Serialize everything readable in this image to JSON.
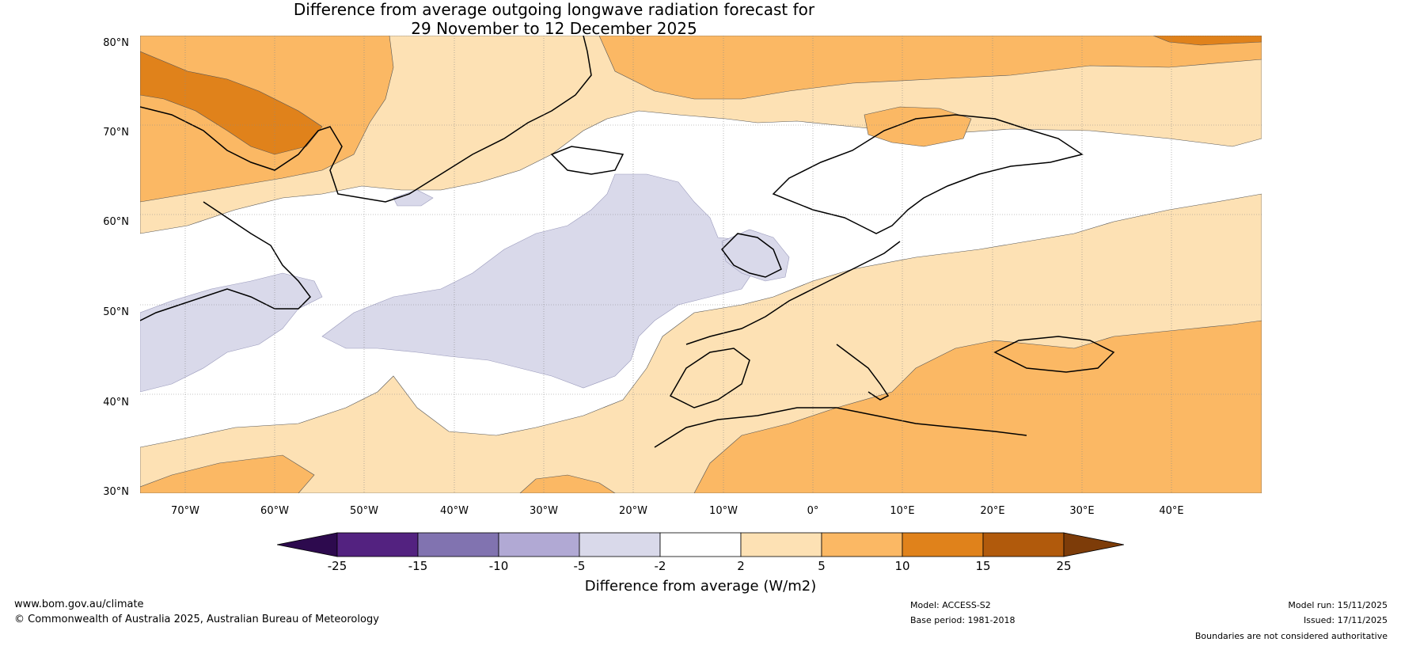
{
  "title": {
    "line1": "Difference from average outgoing longwave radiation forecast for",
    "line2": "29 November to 12 December 2025"
  },
  "map": {
    "lat_labels": [
      "80°N",
      "70°N",
      "60°N",
      "50°N",
      "40°N",
      "30°N"
    ],
    "lon_labels": [
      "70°W",
      "60°W",
      "50°W",
      "40°W",
      "30°W",
      "20°W",
      "10°W",
      "0°",
      "10°E",
      "20°E",
      "30°E",
      "40°E"
    ]
  },
  "colorbar": {
    "ticks": [
      "-25",
      "-15",
      "-10",
      "-5",
      "-2",
      "2",
      "5",
      "10",
      "15",
      "25"
    ],
    "colors": [
      "#2d0a4e",
      "#532280",
      "#8173b0",
      "#b1a9d4",
      "#d9d9ea",
      "#ffffff",
      "#fde1b4",
      "#fbb864",
      "#e0821b",
      "#b15a0c",
      "#7d3c09"
    ],
    "label": "Difference from average (W/m2)"
  },
  "footer": {
    "website": "www.bom.gov.au/climate",
    "copyright": "© Commonwealth of Australia 2025, Australian Bureau of Meteorology",
    "model": "Model: ACCESS-S2",
    "base_period": "Base period: 1981-2018",
    "model_run": "Model run: 15/11/2025",
    "issued": "Issued: 17/11/2025",
    "disclaimer": "Boundaries are not considered authoritative"
  }
}
